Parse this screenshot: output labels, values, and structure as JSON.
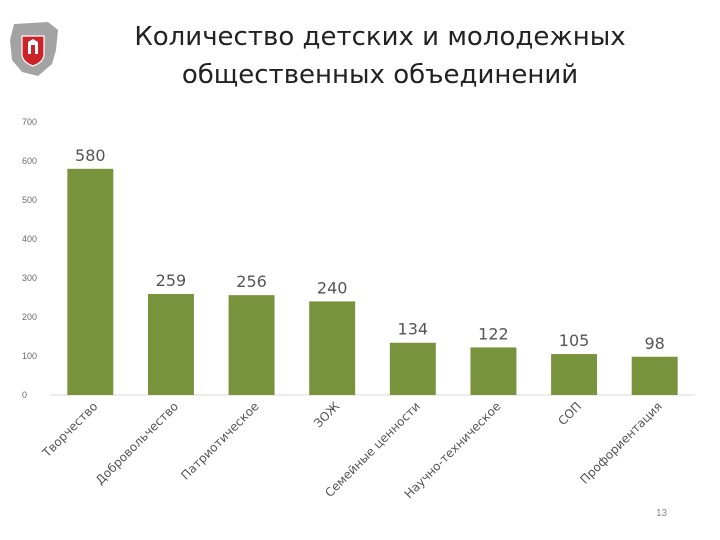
{
  "header": {
    "title_line1": "Количество детских и молодежных",
    "title_line2": "общественных объединений"
  },
  "logo": {
    "icon": "perm-krai-coat-of-arms-icon",
    "colors": [
      "#9a9a9a",
      "#cc2229",
      "#ffffff"
    ]
  },
  "footer": {
    "page_number": "13"
  },
  "colors": {
    "bar": "#77933c",
    "axis": "#d9d9d9",
    "tick_text": "#6b6b6b",
    "label_text": "#555555"
  },
  "chart_data": {
    "type": "bar",
    "title": "",
    "xlabel": "",
    "ylabel": "",
    "categories": [
      "Творчество",
      "Добровольчество",
      "Патриотическое",
      "ЗОЖ",
      "Семейные ценности",
      "Научно-техническое",
      "СОП",
      "Профориентация"
    ],
    "values": [
      580,
      259,
      256,
      240,
      134,
      122,
      105,
      98
    ],
    "data_labels": [
      "580",
      "259",
      "256",
      "240",
      "134",
      "122",
      "105",
      "98"
    ],
    "ylim": [
      0,
      700
    ],
    "yticks": [
      0,
      100,
      200,
      300,
      400,
      500,
      600,
      700
    ],
    "grid": false,
    "legend": "none"
  }
}
